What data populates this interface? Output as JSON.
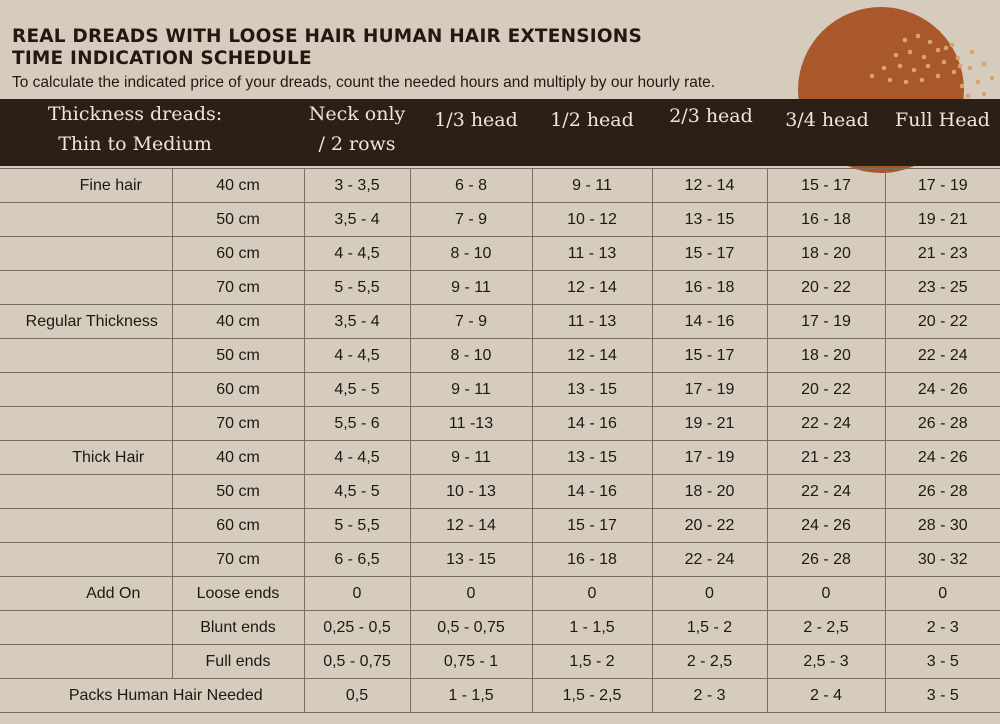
{
  "header": {
    "title_line1": "REAL DREADS WITH LOOSE HAIR HUMAN HAIR EXTENSIONS",
    "title_line2": "TIME INDICATION SCHEDULE",
    "subtitle": "To calculate the indicated price of your dreads, count the needed hours and multiply by our hourly rate."
  },
  "columns": {
    "thickness_line1": "Thickness dreads:",
    "thickness_line2": "Thin to Medium",
    "neck_line1": "Neck only",
    "neck_line2": "/ 2 rows",
    "third": "1/3 head",
    "half": "1/2 head",
    "two_thirds": "2/3 head",
    "three_quarters": "3/4 head",
    "full": "Full Head"
  },
  "rows": [
    {
      "group": "Fine hair",
      "length": "40 cm",
      "values": [
        "3 - 3,5",
        "6 - 8",
        "9 - 11",
        "12 - 14",
        "15 - 17",
        "17 - 19"
      ]
    },
    {
      "group": "",
      "length": "50 cm",
      "values": [
        "3,5 - 4",
        "7 - 9",
        "10 - 12",
        "13 - 15",
        "16 - 18",
        "19 - 21"
      ]
    },
    {
      "group": "",
      "length": "60 cm",
      "values": [
        "4 - 4,5",
        "8 - 10",
        "11 - 13",
        "15 - 17",
        "18 - 20",
        "21 - 23"
      ]
    },
    {
      "group": "",
      "length": "70 cm",
      "values": [
        "5 - 5,5",
        "9 - 11",
        "12 - 14",
        "16 - 18",
        "20 - 22",
        "23 - 25"
      ]
    },
    {
      "group": "Regular Thickness",
      "length": "40 cm",
      "values": [
        "3,5 - 4",
        "7 - 9",
        "11 - 13",
        "14 - 16",
        "17 - 19",
        "20 - 22"
      ]
    },
    {
      "group": "",
      "length": "50 cm",
      "values": [
        "4 - 4,5",
        "8 - 10",
        "12 - 14",
        "15 - 17",
        "18 - 20",
        "22 - 24"
      ]
    },
    {
      "group": "",
      "length": "60 cm",
      "values": [
        "4,5 - 5",
        "9 - 11",
        "13 - 15",
        "17 - 19",
        "20 - 22",
        "24 - 26"
      ]
    },
    {
      "group": "",
      "length": "70 cm",
      "values": [
        "5,5 - 6",
        "11 -13",
        "14 - 16",
        "19 - 21",
        "22 - 24",
        "26 - 28"
      ]
    },
    {
      "group": "Thick Hair",
      "length": "40 cm",
      "values": [
        "4 - 4,5",
        "9 - 11",
        "13 - 15",
        "17 - 19",
        "21 - 23",
        "24 - 26"
      ]
    },
    {
      "group": "",
      "length": "50 cm",
      "values": [
        "4,5 - 5",
        "10 - 13",
        "14 - 16",
        "18 - 20",
        "22 - 24",
        "26 - 28"
      ]
    },
    {
      "group": "",
      "length": "60 cm",
      "values": [
        "5 - 5,5",
        "12 - 14",
        "15 - 17",
        "20 - 22",
        "24 - 26",
        "28 - 30"
      ]
    },
    {
      "group": "",
      "length": "70 cm",
      "values": [
        "6 - 6,5",
        "13 - 15",
        "16 - 18",
        "22 - 24",
        "26 - 28",
        "30 - 32"
      ]
    },
    {
      "group": "Add On",
      "length": "Loose ends",
      "values": [
        "0",
        "0",
        "0",
        "0",
        "0",
        "0"
      ]
    },
    {
      "group": "",
      "length": "Blunt ends",
      "values": [
        "0,25 - 0,5",
        "0,5 - 0,75",
        "1 - 1,5",
        "1,5 - 2",
        "2 - 2,5",
        "2 - 3"
      ]
    },
    {
      "group": "",
      "length": "Full ends",
      "values": [
        "0,5 - 0,75",
        "0,75 - 1",
        "1,5 - 2",
        "2 - 2,5",
        "2,5 - 3",
        "3 - 5"
      ]
    }
  ],
  "packs": {
    "label": "Packs  Human Hair Needed",
    "values": [
      "0,5",
      "1 - 1,5",
      "1,5 - 2,5",
      "2 - 3",
      "2 - 4",
      "3 - 5"
    ]
  },
  "colors": {
    "background": "#d6ccbd",
    "header_band": "#2b2016",
    "accent_circle": "#a8582a",
    "dots": "#d9a46b"
  }
}
